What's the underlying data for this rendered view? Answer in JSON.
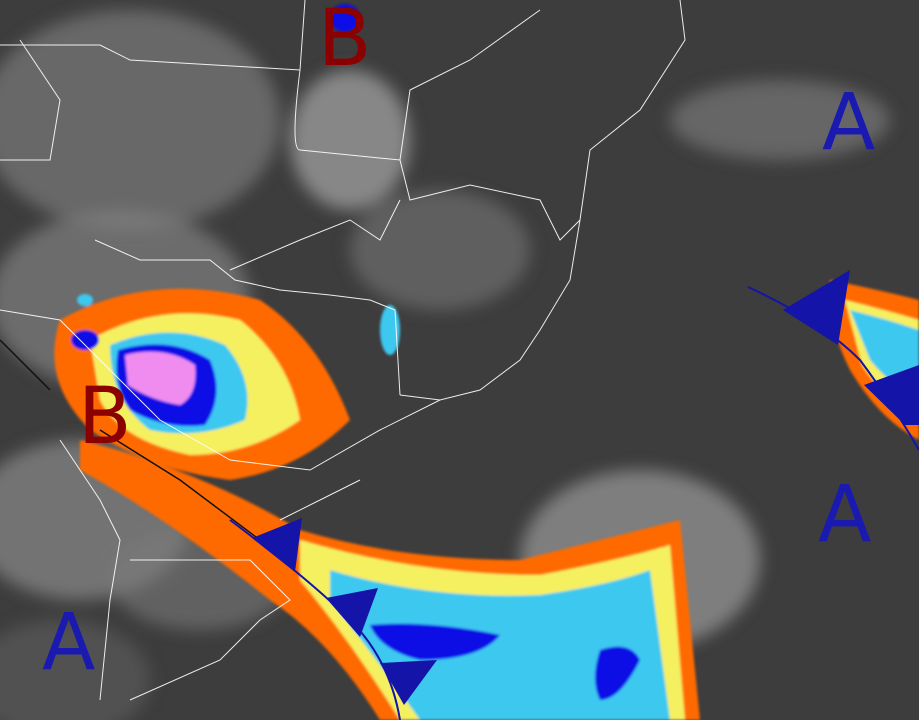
{
  "map": {
    "type": "infrared satellite image with synoptic analysis",
    "colors": {
      "background": "#3a3a3a",
      "low_pressure_label": "#8b0000",
      "high_pressure_label": "#1a1ab0",
      "cold_front": "#1414a8",
      "boundaries": "#ffffff",
      "enhancement_orange": "#ff6a00",
      "enhancement_yellow": "#f5f060",
      "enhancement_cyan": "#3cc8f0",
      "enhancement_blue": "#0a0ae6",
      "enhancement_pink": "#f08cf0"
    },
    "pressure_systems": [
      {
        "label": "B",
        "kind": "low"
      },
      {
        "label": "B",
        "kind": "low"
      },
      {
        "label": "A",
        "kind": "high"
      },
      {
        "label": "A",
        "kind": "high"
      },
      {
        "label": "A",
        "kind": "high"
      }
    ],
    "fronts": [
      {
        "kind": "cold-front"
      },
      {
        "kind": "cold-front"
      }
    ]
  }
}
